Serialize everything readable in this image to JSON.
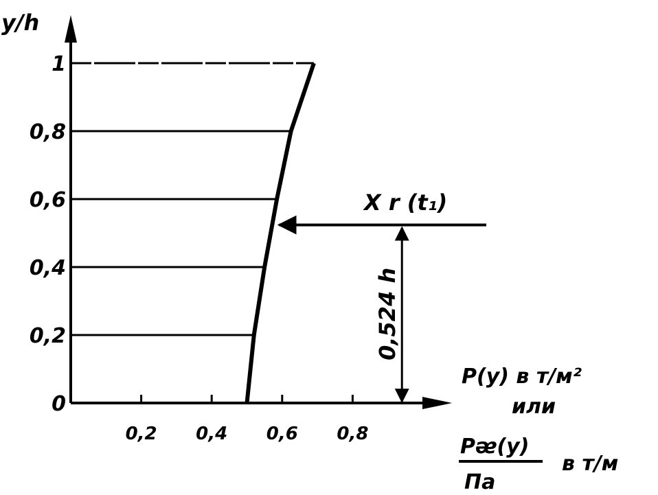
{
  "chart_data": {
    "type": "area",
    "title": "",
    "ylabel": "y/h",
    "xlabel_lines": [
      "P(y) в т/м²",
      "или"
    ],
    "xlabel_fraction": {
      "numerator": "Pᴂ(y)",
      "denominator": "Πa",
      "unit": "в т/м"
    },
    "xlim": [
      0,
      1.12
    ],
    "ylim": [
      0,
      1.15
    ],
    "x_ticks": [
      0.2,
      0.4,
      0.6,
      0.8
    ],
    "x_tick_labels": [
      "0,2",
      "0,4",
      "0,6",
      "0,8"
    ],
    "y_ticks": [
      0,
      0.2,
      0.4,
      0.6,
      0.8,
      1
    ],
    "y_tick_labels": [
      "0",
      "0,2",
      "0,4",
      "0,6",
      "0,8",
      "1"
    ],
    "grid": false,
    "series": [
      {
        "x": [
          0.5,
          0.52,
          0.55,
          0.585,
          0.625,
          0.69
        ],
        "y": [
          0,
          0.2,
          0.4,
          0.6,
          0.8,
          1
        ]
      }
    ],
    "hatch_levels": [
      0.2,
      0.4,
      0.6,
      0.8,
      1
    ],
    "resultant": {
      "label": "X r (t₁)",
      "y": 0.524,
      "x_point": 0.58,
      "x_start": 1.18
    },
    "height_dimension": {
      "label": "0,524 h",
      "x": 0.94,
      "y_from": 0,
      "y_to": 0.524
    }
  }
}
